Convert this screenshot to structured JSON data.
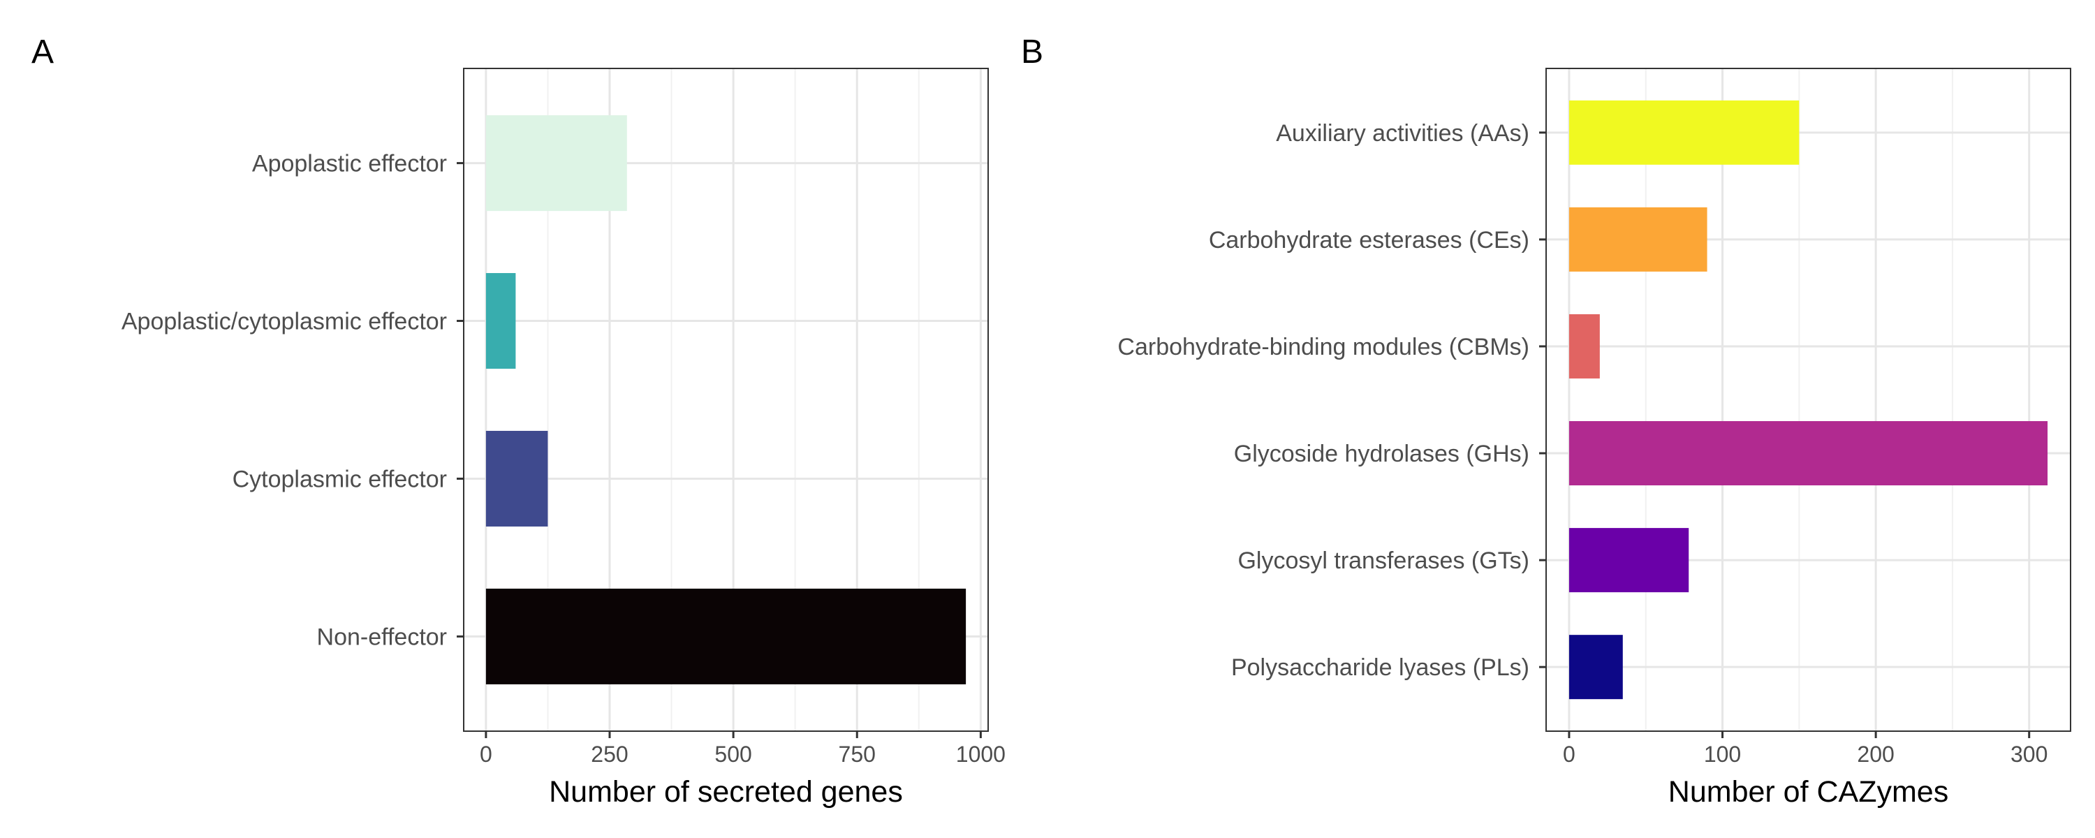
{
  "chart_data": [
    {
      "panel_label": "A",
      "type": "bar",
      "orientation": "horizontal",
      "categories": [
        "Apoplastic effector",
        "Apoplastic/cytoplasmic effector",
        "Cytoplasmic effector",
        "Non-effector"
      ],
      "values": [
        285,
        60,
        125,
        970
      ],
      "colors": [
        "#DDF4E5",
        "#38ADAE",
        "#3F4A8E",
        "#0B0405"
      ],
      "xlabel": "Number of secreted genes",
      "ylabel": "",
      "xlim": [
        -45,
        1015
      ],
      "xticks": [
        0,
        250,
        500,
        750,
        1000
      ],
      "xtick_labels": [
        "0",
        "250",
        "500",
        "750",
        "1000"
      ],
      "grid": true
    },
    {
      "panel_label": "B",
      "type": "bar",
      "orientation": "horizontal",
      "categories": [
        "Auxiliary activities (AAs)",
        "Carbohydrate esterases (CEs)",
        "Carbohydrate-binding modules (CBMs)",
        "Glycoside hydrolases (GHs)",
        "Glycosyl transferases (GTs)",
        "Polysaccharide lyases (PLs)"
      ],
      "values": [
        150,
        90,
        20,
        312,
        78,
        35
      ],
      "colors": [
        "#F0F921",
        "#FCA636",
        "#E16462",
        "#B12A90",
        "#6A00A8",
        "#0D0887"
      ],
      "xlabel": "Number of CAZymes",
      "ylabel": "",
      "xlim": [
        -15,
        327
      ],
      "xticks": [
        0,
        100,
        200,
        300
      ],
      "xtick_labels": [
        "0",
        "100",
        "200",
        "300"
      ],
      "grid": true
    }
  ]
}
